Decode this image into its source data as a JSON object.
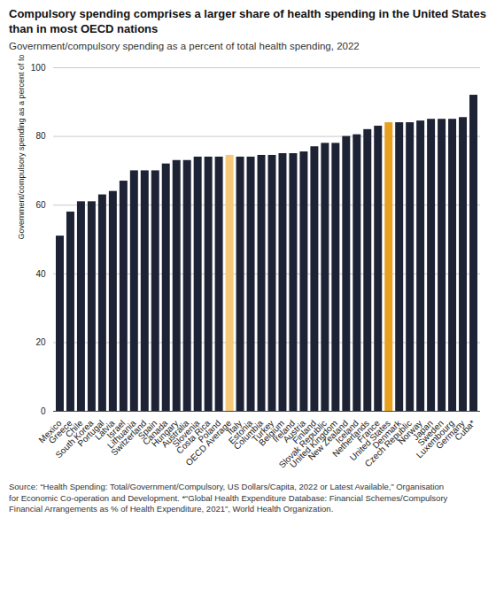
{
  "chart_data": {
    "type": "bar",
    "title": "Compulsory spending comprises a larger share of health spending in the United States\nthan in most OECD nations",
    "subtitle": "Government/compulsory spending as a percent of total health spending, 2022",
    "ylabel": "Government/compulsory spending as a percent of total health spending",
    "source": "Source: “Health Spending: Total/Government/Compulsory, US Dollars/Capita, 2022 or Latest Available,” Organisation\nfor Economic Co-operation and Development. *“Global Health Expenditure Database: Financial Schemes/Compulsory\nFinancial Arrangements as % of Health Expenditure, 2021”, World Health Organization.",
    "categories": [
      "Mexico",
      "Greece",
      "Chile",
      "South Korea",
      "Portugal",
      "Latvia",
      "Israel",
      "Lithuania",
      "Switzerland",
      "Spain",
      "Canada",
      "Hungary",
      "Australia",
      "Slovenia",
      "Costa Rica",
      "Poland",
      "OECD Average",
      "Italy",
      "Estonia",
      "Columbia",
      "Turkey",
      "Belgium",
      "Ireland",
      "Austria",
      "Finland",
      "Slovak Republic",
      "United Kingdom",
      "New Zealand",
      "Iceland",
      "Netherlands",
      "France",
      "United States",
      "Denmark",
      "Czech Republic",
      "Norway",
      "Japan",
      "Sweden",
      "Luxembourg",
      "Germany",
      "Cuba*"
    ],
    "values": [
      51,
      58,
      61,
      61,
      63,
      64,
      67,
      70,
      70,
      70,
      72,
      73,
      73,
      74,
      74,
      74,
      74.5,
      74,
      74,
      74.5,
      74.5,
      75,
      75,
      75.5,
      77,
      78,
      78,
      80,
      80.5,
      82,
      83,
      84,
      84,
      84,
      84.5,
      85,
      85,
      85,
      85.5,
      92
    ],
    "colors": [
      "#1e2235",
      "#1e2235",
      "#1e2235",
      "#1e2235",
      "#1e2235",
      "#1e2235",
      "#1e2235",
      "#1e2235",
      "#1e2235",
      "#1e2235",
      "#1e2235",
      "#1e2235",
      "#1e2235",
      "#1e2235",
      "#1e2235",
      "#1e2235",
      "#f5c87a",
      "#1e2235",
      "#1e2235",
      "#1e2235",
      "#1e2235",
      "#1e2235",
      "#1e2235",
      "#1e2235",
      "#1e2235",
      "#1e2235",
      "#1e2235",
      "#1e2235",
      "#1e2235",
      "#1e2235",
      "#1e2235",
      "#e8a020",
      "#1e2235",
      "#1e2235",
      "#1e2235",
      "#1e2235",
      "#1e2235",
      "#1e2235",
      "#1e2235",
      "#1e2235"
    ],
    "ylim": [
      0,
      100
    ],
    "yticks": [
      0,
      20,
      40,
      60,
      80,
      100
    ],
    "grid": true
  }
}
